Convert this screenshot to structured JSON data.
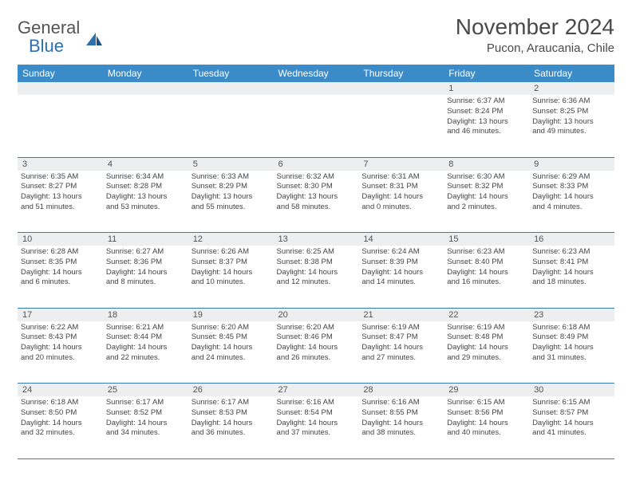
{
  "logo": {
    "text_gray": "General",
    "text_blue": "Blue"
  },
  "title": "November 2024",
  "location": "Pucon, Araucania, Chile",
  "colors": {
    "header_bar": "#3b8bc9",
    "daynum_bg": "#eceef0",
    "rule": "#3b7bb3",
    "logo_gray": "#545454",
    "logo_blue": "#2f6fb0"
  },
  "dow": [
    "Sunday",
    "Monday",
    "Tuesday",
    "Wednesday",
    "Thursday",
    "Friday",
    "Saturday"
  ],
  "weeks": [
    [
      null,
      null,
      null,
      null,
      null,
      {
        "n": "1",
        "sr": "Sunrise: 6:37 AM",
        "ss": "Sunset: 8:24 PM",
        "d1": "Daylight: 13 hours",
        "d2": "and 46 minutes."
      },
      {
        "n": "2",
        "sr": "Sunrise: 6:36 AM",
        "ss": "Sunset: 8:25 PM",
        "d1": "Daylight: 13 hours",
        "d2": "and 49 minutes."
      }
    ],
    [
      {
        "n": "3",
        "sr": "Sunrise: 6:35 AM",
        "ss": "Sunset: 8:27 PM",
        "d1": "Daylight: 13 hours",
        "d2": "and 51 minutes."
      },
      {
        "n": "4",
        "sr": "Sunrise: 6:34 AM",
        "ss": "Sunset: 8:28 PM",
        "d1": "Daylight: 13 hours",
        "d2": "and 53 minutes."
      },
      {
        "n": "5",
        "sr": "Sunrise: 6:33 AM",
        "ss": "Sunset: 8:29 PM",
        "d1": "Daylight: 13 hours",
        "d2": "and 55 minutes."
      },
      {
        "n": "6",
        "sr": "Sunrise: 6:32 AM",
        "ss": "Sunset: 8:30 PM",
        "d1": "Daylight: 13 hours",
        "d2": "and 58 minutes."
      },
      {
        "n": "7",
        "sr": "Sunrise: 6:31 AM",
        "ss": "Sunset: 8:31 PM",
        "d1": "Daylight: 14 hours",
        "d2": "and 0 minutes."
      },
      {
        "n": "8",
        "sr": "Sunrise: 6:30 AM",
        "ss": "Sunset: 8:32 PM",
        "d1": "Daylight: 14 hours",
        "d2": "and 2 minutes."
      },
      {
        "n": "9",
        "sr": "Sunrise: 6:29 AM",
        "ss": "Sunset: 8:33 PM",
        "d1": "Daylight: 14 hours",
        "d2": "and 4 minutes."
      }
    ],
    [
      {
        "n": "10",
        "sr": "Sunrise: 6:28 AM",
        "ss": "Sunset: 8:35 PM",
        "d1": "Daylight: 14 hours",
        "d2": "and 6 minutes."
      },
      {
        "n": "11",
        "sr": "Sunrise: 6:27 AM",
        "ss": "Sunset: 8:36 PM",
        "d1": "Daylight: 14 hours",
        "d2": "and 8 minutes."
      },
      {
        "n": "12",
        "sr": "Sunrise: 6:26 AM",
        "ss": "Sunset: 8:37 PM",
        "d1": "Daylight: 14 hours",
        "d2": "and 10 minutes."
      },
      {
        "n": "13",
        "sr": "Sunrise: 6:25 AM",
        "ss": "Sunset: 8:38 PM",
        "d1": "Daylight: 14 hours",
        "d2": "and 12 minutes."
      },
      {
        "n": "14",
        "sr": "Sunrise: 6:24 AM",
        "ss": "Sunset: 8:39 PM",
        "d1": "Daylight: 14 hours",
        "d2": "and 14 minutes."
      },
      {
        "n": "15",
        "sr": "Sunrise: 6:23 AM",
        "ss": "Sunset: 8:40 PM",
        "d1": "Daylight: 14 hours",
        "d2": "and 16 minutes."
      },
      {
        "n": "16",
        "sr": "Sunrise: 6:23 AM",
        "ss": "Sunset: 8:41 PM",
        "d1": "Daylight: 14 hours",
        "d2": "and 18 minutes."
      }
    ],
    [
      {
        "n": "17",
        "sr": "Sunrise: 6:22 AM",
        "ss": "Sunset: 8:43 PM",
        "d1": "Daylight: 14 hours",
        "d2": "and 20 minutes."
      },
      {
        "n": "18",
        "sr": "Sunrise: 6:21 AM",
        "ss": "Sunset: 8:44 PM",
        "d1": "Daylight: 14 hours",
        "d2": "and 22 minutes."
      },
      {
        "n": "19",
        "sr": "Sunrise: 6:20 AM",
        "ss": "Sunset: 8:45 PM",
        "d1": "Daylight: 14 hours",
        "d2": "and 24 minutes."
      },
      {
        "n": "20",
        "sr": "Sunrise: 6:20 AM",
        "ss": "Sunset: 8:46 PM",
        "d1": "Daylight: 14 hours",
        "d2": "and 26 minutes."
      },
      {
        "n": "21",
        "sr": "Sunrise: 6:19 AM",
        "ss": "Sunset: 8:47 PM",
        "d1": "Daylight: 14 hours",
        "d2": "and 27 minutes."
      },
      {
        "n": "22",
        "sr": "Sunrise: 6:19 AM",
        "ss": "Sunset: 8:48 PM",
        "d1": "Daylight: 14 hours",
        "d2": "and 29 minutes."
      },
      {
        "n": "23",
        "sr": "Sunrise: 6:18 AM",
        "ss": "Sunset: 8:49 PM",
        "d1": "Daylight: 14 hours",
        "d2": "and 31 minutes."
      }
    ],
    [
      {
        "n": "24",
        "sr": "Sunrise: 6:18 AM",
        "ss": "Sunset: 8:50 PM",
        "d1": "Daylight: 14 hours",
        "d2": "and 32 minutes."
      },
      {
        "n": "25",
        "sr": "Sunrise: 6:17 AM",
        "ss": "Sunset: 8:52 PM",
        "d1": "Daylight: 14 hours",
        "d2": "and 34 minutes."
      },
      {
        "n": "26",
        "sr": "Sunrise: 6:17 AM",
        "ss": "Sunset: 8:53 PM",
        "d1": "Daylight: 14 hours",
        "d2": "and 36 minutes."
      },
      {
        "n": "27",
        "sr": "Sunrise: 6:16 AM",
        "ss": "Sunset: 8:54 PM",
        "d1": "Daylight: 14 hours",
        "d2": "and 37 minutes."
      },
      {
        "n": "28",
        "sr": "Sunrise: 6:16 AM",
        "ss": "Sunset: 8:55 PM",
        "d1": "Daylight: 14 hours",
        "d2": "and 38 minutes."
      },
      {
        "n": "29",
        "sr": "Sunrise: 6:15 AM",
        "ss": "Sunset: 8:56 PM",
        "d1": "Daylight: 14 hours",
        "d2": "and 40 minutes."
      },
      {
        "n": "30",
        "sr": "Sunrise: 6:15 AM",
        "ss": "Sunset: 8:57 PM",
        "d1": "Daylight: 14 hours",
        "d2": "and 41 minutes."
      }
    ]
  ]
}
